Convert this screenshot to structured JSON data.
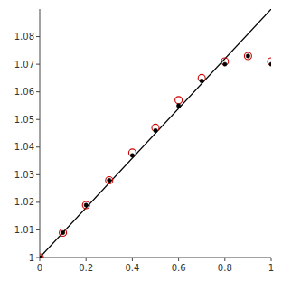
{
  "chart_data": {
    "type": "scatter",
    "xlim": [
      0,
      1
    ],
    "ylim": [
      1.0,
      1.09
    ],
    "xticks": [
      0,
      0.2,
      0.4,
      0.6,
      0.8,
      1.0
    ],
    "yticks": [
      1.0,
      1.01,
      1.02,
      1.03,
      1.04,
      1.05,
      1.06,
      1.07,
      1.08
    ],
    "grid": false,
    "series": [
      {
        "type": "line",
        "color": "#000000",
        "line_style": "solid",
        "x": [
          0.0,
          1.0
        ],
        "values": [
          1.0,
          1.09
        ]
      },
      {
        "type": "scatter",
        "color": "#000000",
        "marker": "circle",
        "x": [
          0.0,
          0.1,
          0.2,
          0.3,
          0.4,
          0.5,
          0.6,
          0.7,
          0.8,
          0.9,
          1.0
        ],
        "values": [
          1.0,
          1.009,
          1.019,
          1.028,
          1.037,
          1.046,
          1.055,
          1.064,
          1.07,
          1.073,
          1.07
        ]
      },
      {
        "type": "scatter",
        "color": "#cc0000",
        "marker": "open-circle",
        "x": [
          0.0,
          0.1,
          0.2,
          0.3,
          0.4,
          0.5,
          0.6,
          0.7,
          0.8,
          0.9,
          1.0
        ],
        "values": [
          1.0,
          1.009,
          1.019,
          1.028,
          1.038,
          1.047,
          1.057,
          1.065,
          1.071,
          1.073,
          1.071
        ]
      }
    ]
  }
}
